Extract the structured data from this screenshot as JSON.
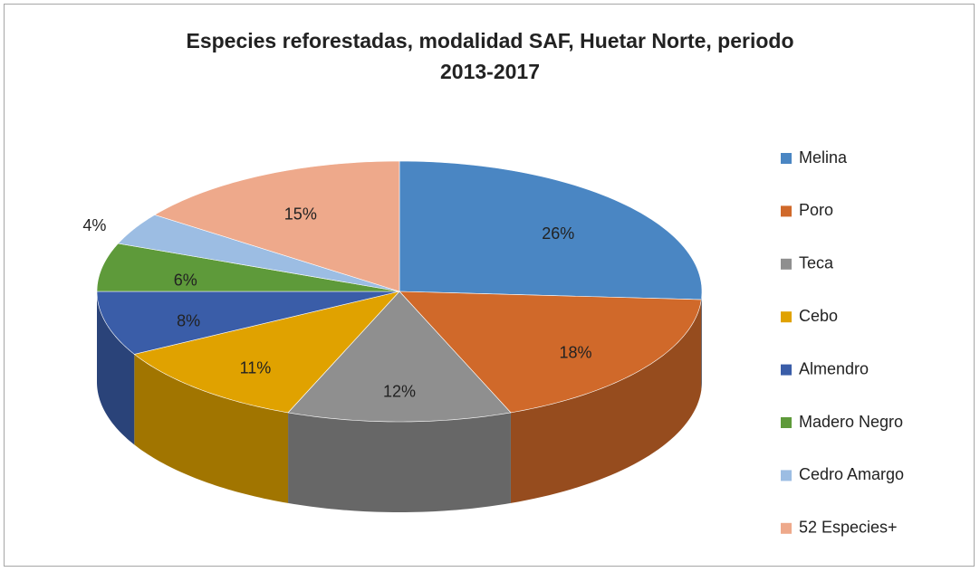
{
  "chart_data": {
    "type": "pie3d",
    "title": "Especies reforestadas, modalidad SAF, Huetar Norte, periodo 2013-2017",
    "categories": [
      "Melina",
      "Poro",
      "Teca",
      "Cebo",
      "Almendro",
      "Madero Negro",
      "Cedro Amargo",
      "52 Especies+"
    ],
    "values": [
      26,
      18,
      12,
      11,
      8,
      6,
      4,
      15
    ],
    "value_labels": [
      "26%",
      "18%",
      "12%",
      "11%",
      "8%",
      "6%",
      "4%",
      "15%"
    ],
    "colors": [
      "#4a86c3",
      "#d0692a",
      "#8f8f8f",
      "#e0a200",
      "#3a5da8",
      "#5e9a3a",
      "#9cbde3",
      "#eea98b"
    ],
    "legend": "right"
  }
}
